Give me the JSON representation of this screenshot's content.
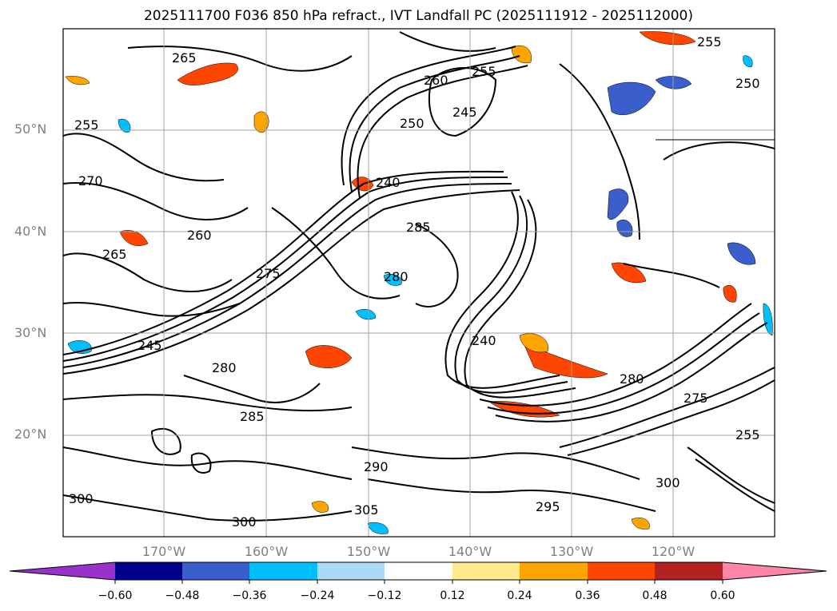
{
  "title": "2025111700 F036 850 hPa refract., IVT Landfall PC (2025111912 - 2025112000)",
  "map": {
    "lat_labels": [
      "50°N",
      "40°N",
      "30°N",
      "20°N"
    ],
    "lon_labels": [
      "170°W",
      "160°W",
      "150°W",
      "140°W",
      "130°W",
      "120°W"
    ],
    "contour_labels": [
      "265",
      "260",
      "255",
      "250",
      "245",
      "240",
      "270",
      "275",
      "280",
      "285",
      "290",
      "295",
      "300",
      "305"
    ]
  },
  "colorbar": {
    "ticks": [
      "−0.60",
      "−0.48",
      "−0.36",
      "−0.24",
      "−0.12",
      "0.12",
      "0.24",
      "0.36",
      "0.48",
      "0.60"
    ],
    "colors": [
      "#9932cc",
      "#00008b",
      "#3a5fcd",
      "#00bfff",
      "#add8f6",
      "#ffffff",
      "#ffe98a",
      "#ffa500",
      "#ff4500",
      "#b22222",
      "#ff85a8"
    ]
  },
  "colors": {
    "positive_strong": "#ff4500",
    "positive_mid": "#ffa500",
    "negative_mid": "#00bfff",
    "negative_strong": "#3a5fcd",
    "contour": "#000000",
    "grid": "#a0a0a0"
  }
}
